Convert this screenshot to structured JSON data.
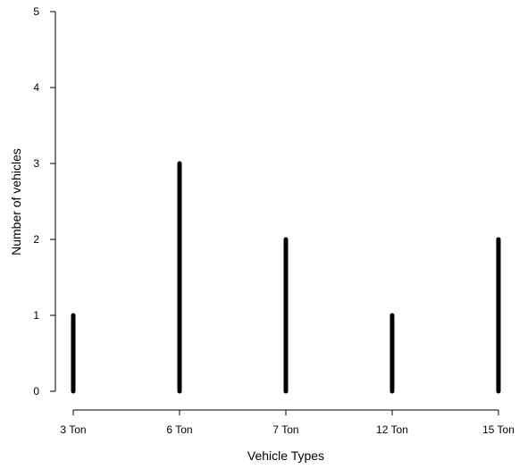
{
  "chart_data": {
    "type": "bar",
    "style": "vertical-lines",
    "title": "",
    "xlabel": "Vehicle Types",
    "ylabel": "Number of vehicles",
    "categories": [
      "3 Ton",
      "6 Ton",
      "7 Ton",
      "12 Ton",
      "15 Ton"
    ],
    "values": [
      1,
      3,
      2,
      1,
      2
    ],
    "ylim": [
      0,
      5
    ],
    "yticks": [
      "0",
      "1",
      "2",
      "3",
      "4",
      "5"
    ],
    "grid": false,
    "legend": "none",
    "color": "#000000"
  }
}
